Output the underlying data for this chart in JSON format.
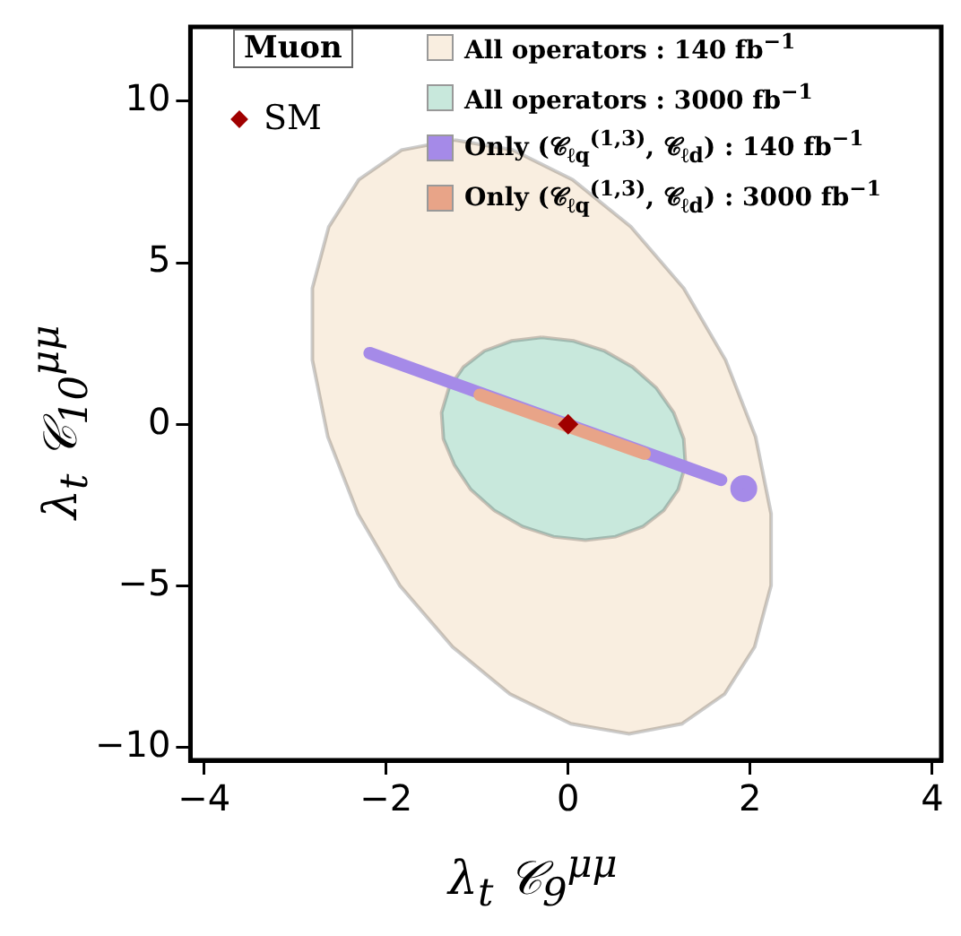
{
  "chart_data": {
    "type": "line",
    "xlabel": "λ$_{t}$ 𝒞$_{9}$$^{μμ}$",
    "ylabel": "λ$_{t}$ 𝒞$_{10}$$^{μμ}$",
    "legend_title": "Muon",
    "legend": "top",
    "grid": false,
    "xlim": [
      -4.15,
      4.1
    ],
    "xticks": [
      -4,
      -2,
      0,
      2,
      4
    ],
    "ylim": [
      -10.4,
      12.3
    ],
    "yticks": [
      -10,
      -5,
      0,
      5,
      10
    ],
    "series": [
      {
        "name": "All operators : 140 fb$^{−1}$",
        "type": "area",
        "color": "#f9eee0",
        "x": [
          -1.25,
          -0.61,
          0.05,
          0.69,
          1.27,
          1.73,
          2.06,
          2.23,
          2.23,
          2.05,
          1.72,
          1.25,
          0.67,
          0.03,
          -0.64,
          -1.27,
          -1.85,
          -2.31,
          -2.64,
          -2.81,
          -2.81,
          -2.63,
          -2.3,
          -1.83,
          -1.25
        ],
        "values": [
          8.8,
          8.49,
          7.57,
          6.11,
          4.21,
          1.99,
          -0.39,
          -2.77,
          -4.99,
          -6.89,
          -8.35,
          -9.27,
          -9.58,
          -9.27,
          -8.35,
          -6.89,
          -4.99,
          -2.77,
          -0.39,
          1.99,
          4.21,
          6.11,
          7.57,
          8.49,
          8.8
        ]
      },
      {
        "name": "All operators : 3000 fb$^{−1}$",
        "type": "area",
        "color": "#c8e8dc",
        "x": [
          -0.29,
          0.06,
          0.4,
          0.71,
          0.97,
          1.16,
          1.27,
          1.29,
          1.21,
          1.05,
          0.82,
          0.52,
          0.19,
          -0.16,
          -0.5,
          -0.81,
          -1.07,
          -1.25,
          -1.37,
          -1.39,
          -1.31,
          -1.15,
          -0.92,
          -0.62,
          -0.29
        ],
        "values": [
          2.69,
          2.58,
          2.27,
          1.77,
          1.12,
          0.36,
          -0.45,
          -1.26,
          -2.02,
          -2.67,
          -3.17,
          -3.48,
          -3.59,
          -3.48,
          -3.17,
          -2.67,
          -2.02,
          -1.26,
          -0.45,
          0.36,
          1.12,
          1.77,
          2.27,
          2.58,
          2.69
        ]
      },
      {
        "name": "Only (𝒞$_{ℓq}$$^{(1,3)}$, 𝒞$_{ℓd}$) : 140 fb$^{−1}$",
        "type": "line",
        "color": "#a58ae8",
        "x": [
          -2.18,
          1.68,
          1.8,
          1.93
        ],
        "values": [
          2.2,
          -1.72,
          null,
          -1.99
        ]
      },
      {
        "name": "Only (𝒞$_{ℓq}$$^{(1,3)}$, 𝒞$_{ℓd}$) : 3000 fb$^{−1}$",
        "type": "line",
        "color": "#e8a488",
        "x": [
          -0.97,
          0.84
        ],
        "values": [
          0.91,
          -0.91
        ]
      },
      {
        "name": "SM",
        "type": "scatter",
        "marker": "diamond",
        "color": "#a00000",
        "x": [
          0
        ],
        "values": [
          0
        ]
      }
    ]
  }
}
